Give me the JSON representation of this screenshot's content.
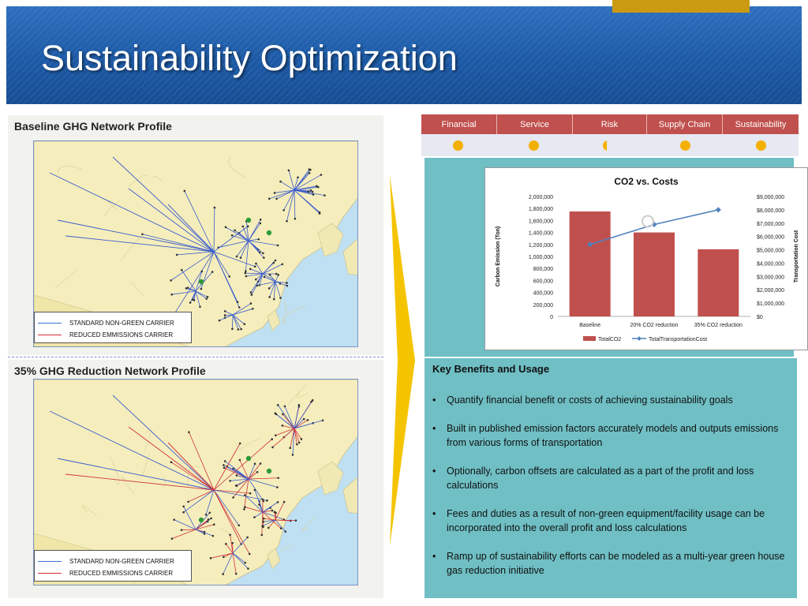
{
  "header": {
    "title": "Sustainability Optimization"
  },
  "left": {
    "top_title": "Baseline GHG Network Profile",
    "bottom_title": "35% GHG Reduction Network Profile",
    "legend": {
      "standard": "STANDARD NON-GREEN CARRIER",
      "reduced": "REDUCED EMMISSIONS CARRIER"
    },
    "colors": {
      "standard": "#3b5ccc",
      "reduced": "#d0303a"
    }
  },
  "tabs": [
    "Financial",
    "Service",
    "Risk",
    "Supply Chain",
    "Sustainability"
  ],
  "chart_data": {
    "type": "bar",
    "title": "CO2 vs. Costs",
    "categories": [
      "Baseline",
      "20% CO2 reduction",
      "35% CO2 reduction"
    ],
    "ylabel": "Carbon Emission (Ton)",
    "y2label": "Transportation Cost",
    "ylim": [
      0,
      2000000
    ],
    "y2lim": [
      0,
      9000000
    ],
    "yticks": [
      "2,000,000",
      "1,800,000",
      "1,600,000",
      "1,400,000",
      "1,200,000",
      "1,000,000",
      "800,000",
      "600,000",
      "400,000",
      "200,000",
      "0"
    ],
    "y2ticks": [
      "$9,000,000",
      "$8,000,000",
      "$7,000,000",
      "$6,000,000",
      "$5,000,000",
      "$4,000,000",
      "$3,000,000",
      "$2,000,000",
      "$1,000,000",
      "$0"
    ],
    "series": [
      {
        "name": "TotalCO2",
        "type": "bar",
        "axis": "left",
        "color": "#c0504d",
        "values": [
          1750000,
          1400000,
          1120000
        ]
      },
      {
        "name": "TotalTransportationCost",
        "type": "line",
        "axis": "right",
        "color": "#4f81bd",
        "values": [
          5400000,
          6900000,
          8000000
        ]
      }
    ],
    "legend_position": "bottom"
  },
  "benefits": {
    "title": "Key Benefits and Usage",
    "items": [
      "Quantify financial benefit or costs of achieving sustainability goals",
      "Built in published emission factors accurately models and outputs emissions from various forms of transportation",
      "Optionally, carbon offsets are calculated as a part of the profit and loss calculations",
      "Fees and duties as a result of non-green equipment/facility usage can be incorporated into the overall profit and loss calculations",
      "Ramp up of sustainability efforts can be modeled as a multi-year green house gas reduction initiative"
    ]
  }
}
